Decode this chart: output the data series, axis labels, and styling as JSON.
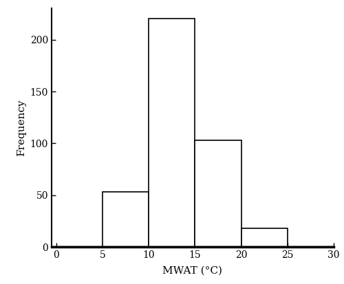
{
  "bin_edges": [
    0,
    5,
    10,
    15,
    20,
    25,
    30
  ],
  "frequencies": [
    0,
    53,
    220,
    103,
    18,
    0
  ],
  "xlabel": "MWAT (°C)",
  "ylabel": "Frequency",
  "xlim": [
    -0.5,
    30
  ],
  "ylim": [
    0,
    230
  ],
  "xticks": [
    0,
    5,
    10,
    15,
    20,
    25,
    30
  ],
  "yticks": [
    0,
    50,
    100,
    150,
    200
  ],
  "bar_facecolor": "#ffffff",
  "bar_edgecolor": "#000000",
  "background_color": "#ffffff",
  "linewidth": 1.2,
  "xlabel_fontsize": 11,
  "ylabel_fontsize": 11,
  "tick_fontsize": 10,
  "figsize": [
    5.0,
    4.13
  ],
  "dpi": 100
}
